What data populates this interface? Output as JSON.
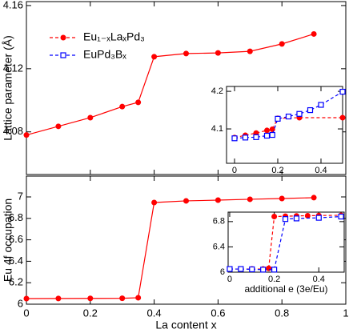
{
  "chart_data": [
    {
      "type": "line",
      "ylabel": "Lattice parameter (Å)",
      "xlim": [
        0,
        1
      ],
      "xticks": [
        0,
        0.2,
        0.4,
        0.6,
        0.8,
        1
      ],
      "xticklabels": false,
      "ylim": [
        4.053,
        4.1625
      ],
      "yticks": [
        4.08,
        4.12,
        4.16
      ],
      "series": [
        {
          "color": "#ff0000",
          "line_style": "solid",
          "marker": "circle",
          "x": [
            0,
            0.1,
            0.2,
            0.3,
            0.35,
            0.4,
            0.5,
            0.6,
            0.7,
            0.8,
            0.9
          ],
          "values": [
            4.078,
            4.0835,
            4.089,
            4.096,
            4.0987,
            4.1276,
            4.1296,
            4.13,
            4.131,
            4.1357,
            4.142
          ]
        }
      ]
    },
    {
      "type": "line",
      "xlabel": "additional e (3e/Eu)",
      "legend": "upper left",
      "xlim": [
        -0.037,
        0.5
      ],
      "xticks": [
        0,
        0.2,
        0.4
      ],
      "ylim": [
        4.0085,
        4.213
      ],
      "yticks": [
        4.1,
        4.2
      ],
      "series": [
        {
          "name": "Eu₁₋ₓLaₓPd₃",
          "color": "#ff0000",
          "line_style": "dashed",
          "marker": "circle",
          "x": [
            0,
            0.05,
            0.1,
            0.15,
            0.175,
            0.2,
            0.3,
            0.5
          ],
          "values": [
            4.077,
            4.083,
            4.089,
            4.096,
            4.099,
            4.128,
            4.13,
            4.13
          ]
        },
        {
          "name": "EuPd₃Bₓ",
          "color": "#0000ff",
          "line_style": "dashed",
          "marker": "square",
          "x": [
            0,
            0.05,
            0.1,
            0.15,
            0.175,
            0.2,
            0.25,
            0.3,
            0.35,
            0.4,
            0.5
          ],
          "values": [
            4.075,
            4.077,
            4.078,
            4.082,
            4.084,
            4.127,
            4.133,
            4.14,
            4.15,
            4.164,
            4.199
          ]
        }
      ]
    },
    {
      "type": "line",
      "xlabel": "La content x",
      "ylabel": "Eu 4f occupation",
      "xlim": [
        0,
        1
      ],
      "xticks": [
        0,
        0.2,
        0.4,
        0.6,
        0.8,
        1
      ],
      "ylim": [
        6,
        7.194
      ],
      "yticks": [
        6,
        6.2,
        6.4,
        6.6,
        6.8,
        7
      ],
      "series": [
        {
          "color": "#ff0000",
          "line_style": "solid",
          "marker": "circle",
          "x": [
            0,
            0.1,
            0.2,
            0.3,
            0.35,
            0.4,
            0.5,
            0.6,
            0.7,
            0.8,
            0.9
          ],
          "values": [
            6.052,
            6.053,
            6.054,
            6.055,
            6.06,
            6.948,
            6.963,
            6.97,
            6.978,
            6.985,
            6.993
          ]
        }
      ]
    },
    {
      "type": "line",
      "xlabel": "additional e (3e/Eu)",
      "xlim": [
        -0.007,
        0.514
      ],
      "xticks": [
        0,
        0.2,
        0.4
      ],
      "ylim": [
        6,
        6.95
      ],
      "yticks": [
        6,
        6.4,
        6.8
      ],
      "series": [
        {
          "color": "#ff0000",
          "line_style": "dashed",
          "marker": "circle",
          "x": [
            0,
            0.05,
            0.1,
            0.15,
            0.175,
            0.2,
            0.25,
            0.3,
            0.35,
            0.4,
            0.5
          ],
          "values": [
            6.05,
            6.05,
            6.05,
            6.05,
            6.06,
            6.88,
            6.885,
            6.89,
            6.893,
            6.896,
            6.9
          ]
        },
        {
          "color": "#0000ff",
          "line_style": "dashed",
          "marker": "square",
          "x": [
            0,
            0.05,
            0.1,
            0.15,
            0.2,
            0.25,
            0.3,
            0.4,
            0.5
          ],
          "values": [
            6.05,
            6.05,
            6.045,
            6.04,
            6.04,
            6.84,
            6.85,
            6.86,
            6.88
          ]
        }
      ]
    }
  ]
}
